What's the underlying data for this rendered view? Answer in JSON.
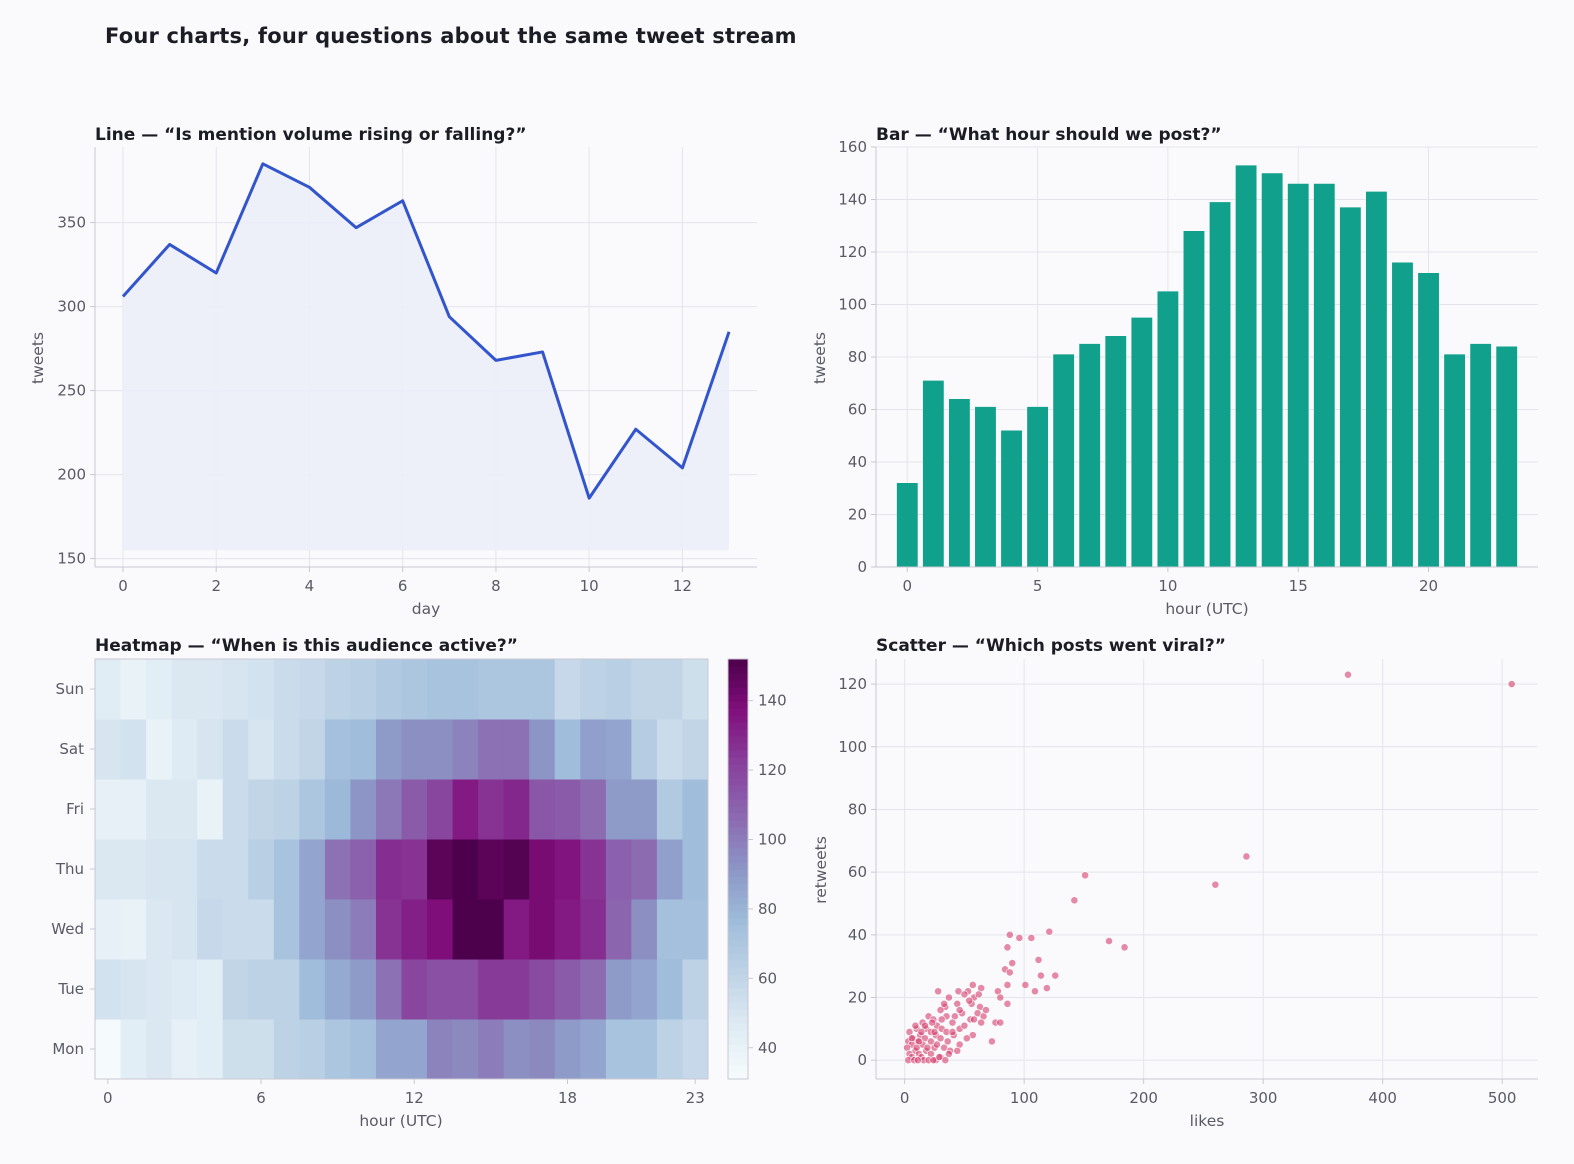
{
  "title": "Four charts, four questions about the same tweet stream",
  "colors": {
    "line": "#3355cc",
    "line_fill": "#ebedf8",
    "bar": "#10a08c",
    "scatter": "#d6406e",
    "heat_low": "#f7fcfd",
    "heat_high": "#4d004b"
  },
  "chart_data": [
    {
      "type": "line",
      "title": "Line — “Is mention volume rising or falling?”",
      "xlabel": "day",
      "ylabel": "tweets",
      "x": [
        0,
        1,
        2,
        3,
        4,
        5,
        6,
        7,
        8,
        9,
        10,
        11,
        12,
        13
      ],
      "values": [
        306,
        337,
        320,
        385,
        371,
        347,
        363,
        294,
        268,
        273,
        186,
        227,
        204,
        285
      ],
      "xlim": [
        -0.6,
        13.6
      ],
      "ylim": [
        145,
        395
      ],
      "xticks": [
        0,
        2,
        4,
        6,
        8,
        10,
        12
      ],
      "yticks": [
        150,
        200,
        250,
        300,
        350
      ],
      "fill_baseline": 155,
      "grid": true
    },
    {
      "type": "bar",
      "title": "Bar — “What hour should we post?”",
      "xlabel": "hour (UTC)",
      "ylabel": "tweets",
      "categories": [
        0,
        1,
        2,
        3,
        4,
        5,
        6,
        7,
        8,
        9,
        10,
        11,
        12,
        13,
        14,
        15,
        16,
        17,
        18,
        19,
        20,
        21,
        22,
        23
      ],
      "values": [
        32,
        71,
        64,
        61,
        52,
        61,
        81,
        85,
        88,
        95,
        105,
        128,
        139,
        153,
        150,
        146,
        146,
        137,
        143,
        116,
        112,
        81,
        85,
        84
      ],
      "xlim": [
        -1.2,
        24.2
      ],
      "ylim": [
        0,
        160
      ],
      "xticks": [
        0,
        5,
        10,
        15,
        20
      ],
      "yticks": [
        0,
        20,
        40,
        60,
        80,
        100,
        120,
        140,
        160
      ],
      "grid": true
    },
    {
      "type": "heatmap",
      "title": "Heatmap — “When is this audience active?”",
      "xlabel": "hour (UTC)",
      "ylabel": "",
      "rows": [
        "Mon",
        "Tue",
        "Wed",
        "Thu",
        "Fri",
        "Sat",
        "Sun"
      ],
      "xticks": [
        0,
        6,
        12,
        18,
        23
      ],
      "colorbar_ticks": [
        40,
        60,
        80,
        100,
        120,
        140
      ],
      "vmin": 31,
      "vmax": 152,
      "values": [
        [
          32,
          44,
          48,
          42,
          44,
          54,
          54,
          62,
          64,
          70,
          74,
          86,
          86,
          98,
          96,
          100,
          94,
          96,
          90,
          86,
          72,
          72,
          62,
          58
        ],
        [
          52,
          50,
          48,
          46,
          44,
          60,
          62,
          62,
          76,
          84,
          90,
          104,
          120,
          116,
          116,
          124,
          124,
          118,
          112,
          106,
          90,
          86,
          76,
          62
        ],
        [
          42,
          40,
          48,
          50,
          58,
          56,
          56,
          72,
          86,
          94,
          100,
          126,
          132,
          138,
          152,
          152,
          134,
          140,
          134,
          128,
          108,
          94,
          74,
          74
        ],
        [
          48,
          48,
          50,
          50,
          56,
          56,
          64,
          72,
          86,
          104,
          110,
          128,
          126,
          148,
          152,
          148,
          150,
          140,
          136,
          126,
          110,
          106,
          88,
          76
        ],
        [
          42,
          42,
          48,
          48,
          40,
          56,
          60,
          62,
          70,
          78,
          92,
          102,
          112,
          120,
          134,
          126,
          130,
          114,
          112,
          106,
          90,
          90,
          68,
          76
        ],
        [
          50,
          52,
          40,
          46,
          50,
          56,
          50,
          56,
          60,
          74,
          76,
          90,
          94,
          94,
          98,
          104,
          104,
          92,
          76,
          88,
          86,
          66,
          56,
          60
        ],
        [
          45,
          40,
          44,
          48,
          48,
          50,
          52,
          56,
          58,
          62,
          64,
          68,
          70,
          72,
          72,
          70,
          70,
          70,
          58,
          62,
          64,
          60,
          60,
          54
        ]
      ]
    },
    {
      "type": "scatter",
      "title": "Scatter — “Which posts went viral?”",
      "xlabel": "likes",
      "ylabel": "retweets",
      "xlim": [
        -24,
        530
      ],
      "ylim": [
        -6,
        128
      ],
      "xticks": [
        0,
        100,
        200,
        300,
        400,
        500
      ],
      "yticks": [
        0,
        20,
        40,
        60,
        80,
        100,
        120
      ],
      "points": [
        [
          371,
          123
        ],
        [
          508,
          120
        ],
        [
          286,
          65
        ],
        [
          260,
          56
        ],
        [
          151,
          59
        ],
        [
          142,
          51
        ],
        [
          121,
          41
        ],
        [
          171,
          38
        ],
        [
          184,
          36
        ],
        [
          88,
          40
        ],
        [
          96,
          39
        ],
        [
          106,
          39
        ],
        [
          86,
          36
        ],
        [
          112,
          32
        ],
        [
          90,
          31
        ],
        [
          84,
          29
        ],
        [
          88,
          28
        ],
        [
          114,
          27
        ],
        [
          126,
          27
        ],
        [
          101,
          24
        ],
        [
          109,
          22
        ],
        [
          119,
          23
        ],
        [
          86,
          24
        ],
        [
          64,
          23
        ],
        [
          57,
          24
        ],
        [
          53,
          22
        ],
        [
          28,
          22
        ],
        [
          45,
          22
        ],
        [
          78,
          22
        ],
        [
          50,
          21
        ],
        [
          37,
          20
        ],
        [
          58,
          20
        ],
        [
          80,
          20
        ],
        [
          56,
          18
        ],
        [
          44,
          18
        ],
        [
          86,
          18
        ],
        [
          34,
          17
        ],
        [
          63,
          17
        ],
        [
          30,
          16
        ],
        [
          48,
          15
        ],
        [
          61,
          15
        ],
        [
          20,
          14
        ],
        [
          35,
          14
        ],
        [
          42,
          14
        ],
        [
          66,
          14
        ],
        [
          24,
          13
        ],
        [
          55,
          13
        ],
        [
          40,
          12
        ],
        [
          15,
          12
        ],
        [
          27,
          11
        ],
        [
          64,
          12
        ],
        [
          76,
          12
        ],
        [
          80,
          12
        ],
        [
          18,
          10
        ],
        [
          31,
          10
        ],
        [
          46,
          10
        ],
        [
          10,
          10
        ],
        [
          22,
          9
        ],
        [
          35,
          9
        ],
        [
          4,
          9
        ],
        [
          13,
          8
        ],
        [
          26,
          8
        ],
        [
          41,
          8
        ],
        [
          57,
          8
        ],
        [
          7,
          7
        ],
        [
          17,
          7
        ],
        [
          30,
          7
        ],
        [
          52,
          7
        ],
        [
          73,
          6
        ],
        [
          3,
          6
        ],
        [
          11,
          6
        ],
        [
          22,
          6
        ],
        [
          36,
          6
        ],
        [
          46,
          5
        ],
        [
          6,
          5
        ],
        [
          15,
          5
        ],
        [
          25,
          4
        ],
        [
          33,
          4
        ],
        [
          2,
          4
        ],
        [
          9,
          3
        ],
        [
          18,
          3
        ],
        [
          38,
          3
        ],
        [
          4,
          2
        ],
        [
          12,
          2
        ],
        [
          22,
          2
        ],
        [
          30,
          1
        ],
        [
          6,
          1
        ],
        [
          14,
          1
        ],
        [
          26,
          0
        ],
        [
          3,
          0
        ],
        [
          8,
          0
        ],
        [
          16,
          0
        ],
        [
          20,
          0
        ],
        [
          34,
          0
        ],
        [
          11,
          0
        ],
        [
          24,
          0
        ],
        [
          29,
          1
        ],
        [
          37,
          2
        ],
        [
          44,
          3
        ],
        [
          19,
          4
        ],
        [
          27,
          5
        ],
        [
          12,
          6
        ],
        [
          40,
          9
        ],
        [
          50,
          11
        ],
        [
          58,
          13
        ],
        [
          68,
          16
        ],
        [
          33,
          18
        ],
        [
          46,
          16
        ],
        [
          54,
          19
        ],
        [
          62,
          21
        ],
        [
          25,
          9
        ],
        [
          17,
          11
        ],
        [
          23,
          12
        ],
        [
          31,
          13
        ],
        [
          10,
          4
        ],
        [
          14,
          9
        ],
        [
          6,
          7
        ],
        [
          9,
          11
        ]
      ]
    }
  ]
}
